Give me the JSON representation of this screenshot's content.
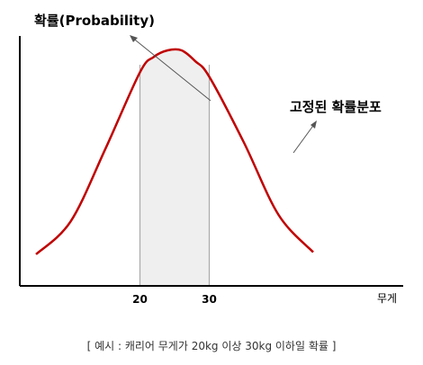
{
  "chart_data": {
    "type": "line",
    "title": "",
    "ylabel": "확률(Probability)",
    "xlabel": "무게",
    "curve_label": "고정된 확률분포",
    "x_ticks": [
      20,
      30
    ],
    "shaded_range": [
      20,
      30
    ],
    "series": [
      {
        "x": [
          5,
          10,
          15,
          20,
          22,
          24,
          26,
          28,
          30,
          35,
          40,
          45
        ],
        "y": [
          0.07,
          0.22,
          0.55,
          0.9,
          0.97,
          1.0,
          1.0,
          0.95,
          0.88,
          0.58,
          0.25,
          0.08
        ]
      }
    ],
    "colors": {
      "curve": "#c00000",
      "shade": "#efefef",
      "axis": "#000000",
      "arrow": "#555555"
    }
  },
  "caption": "[ 예시 : 캐리어 무게가 20kg 이상 30kg 이하일 확률 ]"
}
